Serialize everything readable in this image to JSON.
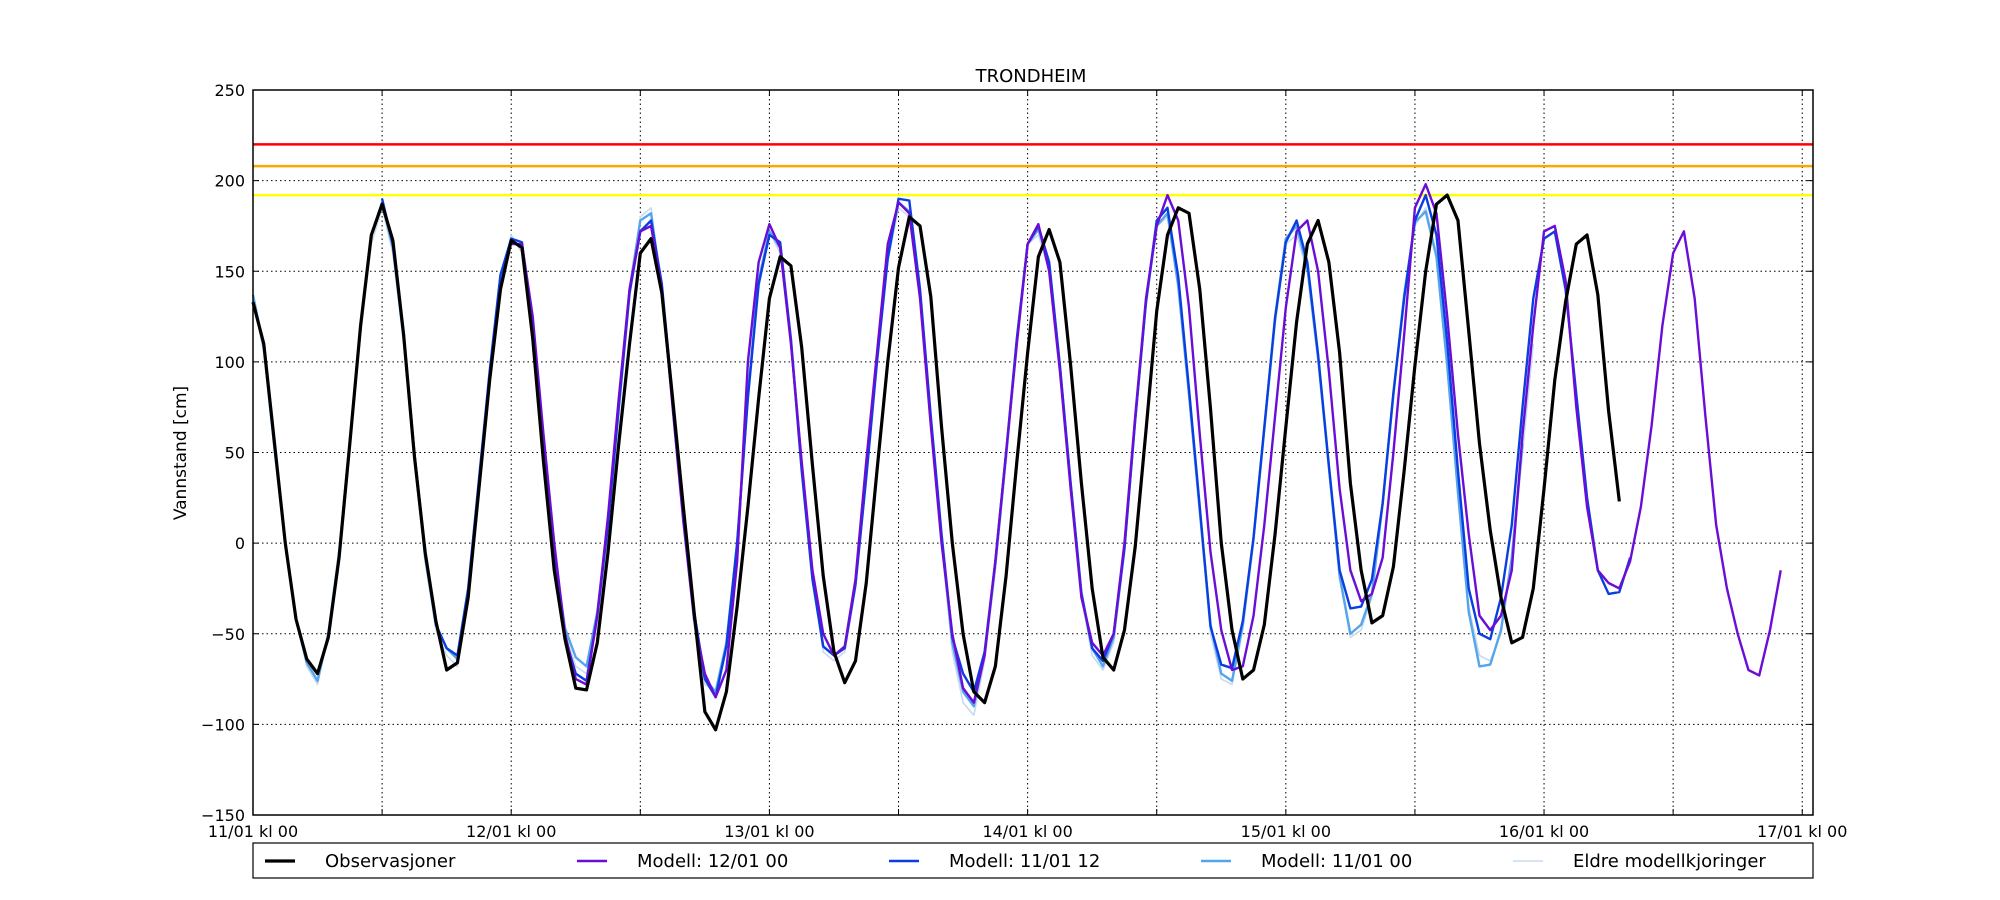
{
  "chart_data": {
    "type": "line",
    "title": "TRONDHEIM",
    "ylabel": "Vannstand [cm]",
    "xlabel": "",
    "ylim": [
      -150,
      250
    ],
    "yticks": [
      -150,
      -100,
      -50,
      0,
      50,
      100,
      150,
      200,
      250
    ],
    "ytick_labels": [
      "−150",
      "−100",
      "−50",
      "0",
      "50",
      "100",
      "150",
      "200",
      "250"
    ],
    "xlim": [
      0,
      145
    ],
    "xticks": [
      0,
      12,
      24,
      36,
      48,
      60,
      72,
      84,
      96,
      108,
      120,
      132,
      144
    ],
    "xtick_labels": [
      {
        "x": 0,
        "label": "11/01 kl 00"
      },
      {
        "x": 24,
        "label": "12/01 kl 00"
      },
      {
        "x": 48,
        "label": "13/01 kl 00"
      },
      {
        "x": 72,
        "label": "14/01 kl 00"
      },
      {
        "x": 96,
        "label": "15/01 kl 00"
      },
      {
        "x": 120,
        "label": "16/01 kl 00"
      },
      {
        "x": 144,
        "label": "17/01 kl 00"
      }
    ],
    "grid": true,
    "legend_position": "bottom",
    "thresholds": [
      {
        "value": 220,
        "color": "#ff0000"
      },
      {
        "value": 208,
        "color": "#ffa500"
      },
      {
        "value": 192,
        "color": "#ffff00"
      }
    ],
    "series": [
      {
        "name": "Eldre modellkjoringer",
        "color": "#c6dbef",
        "start_x": 0,
        "values": [
          135,
          105,
          50,
          0,
          -42,
          -68,
          -78,
          -50,
          -5,
          55,
          115,
          165,
          185,
          160,
          110,
          45,
          -10,
          -48,
          -62,
          -68,
          -30,
          30,
          90,
          145,
          170,
          160,
          110,
          50,
          -10,
          -50,
          -68,
          -72,
          -45,
          5,
          70,
          135,
          180,
          185,
          135,
          75,
          15,
          -45,
          -78,
          -82,
          -55,
          0,
          80,
          140,
          172,
          160,
          110,
          40,
          -20,
          -60,
          -65,
          -60,
          -25,
          35,
          100,
          155,
          185,
          180,
          135,
          65,
          0,
          -60,
          -88,
          -95,
          -65,
          -15,
          45,
          110,
          165,
          170,
          150,
          95,
          30,
          -30,
          -62,
          -70,
          -55,
          -5,
          65,
          130,
          175,
          180,
          140,
          80,
          15,
          -50,
          -75,
          -78,
          -48,
          0,
          60,
          120,
          165,
          170,
          150,
          100,
          40,
          -20,
          -52,
          -48,
          -30,
          20,
          80,
          135,
          175,
          185,
          160,
          100,
          25,
          -35,
          -62,
          -65,
          -50,
          -10,
          50,
          110
        ]
      },
      {
        "name": "Modell: 11/01 00",
        "color": "#56a5ec",
        "start_x": 0,
        "values": [
          137,
          108,
          52,
          0,
          -42,
          -66,
          -76,
          -50,
          -5,
          57,
          118,
          170,
          188,
          163,
          113,
          48,
          -8,
          -45,
          -58,
          -64,
          -28,
          32,
          92,
          147,
          167,
          163,
          113,
          53,
          -5,
          -47,
          -63,
          -68,
          -38,
          12,
          77,
          140,
          178,
          182,
          140,
          80,
          18,
          -38,
          -75,
          -82,
          -55,
          0,
          82,
          145,
          172,
          163,
          113,
          43,
          -18,
          -57,
          -62,
          -57,
          -22,
          38,
          103,
          160,
          188,
          183,
          138,
          68,
          3,
          -55,
          -82,
          -90,
          -62,
          -12,
          48,
          112,
          165,
          173,
          155,
          98,
          33,
          -27,
          -58,
          -68,
          -52,
          -3,
          68,
          133,
          175,
          182,
          142,
          82,
          18,
          -45,
          -72,
          -76,
          -45,
          3,
          63,
          125,
          168,
          175,
          152,
          102,
          42,
          -18,
          -50,
          -45,
          -28,
          22,
          82,
          137,
          177,
          183,
          158,
          98,
          28,
          -38,
          -68,
          -67,
          -48,
          -8,
          55
        ]
      },
      {
        "name": "Modell: 11/01 12",
        "color": "#0a3ee0",
        "start_x": 12,
        "values": [
          190,
          165,
          115,
          50,
          -5,
          -45,
          -58,
          -62,
          -25,
          35,
          95,
          148,
          168,
          166,
          118,
          57,
          -2,
          -52,
          -72,
          -76,
          -40,
          10,
          75,
          138,
          172,
          178,
          143,
          80,
          18,
          -38,
          -75,
          -85,
          -57,
          0,
          80,
          143,
          170,
          166,
          112,
          40,
          -20,
          -57,
          -62,
          -58,
          -23,
          36,
          100,
          157,
          190,
          189,
          140,
          70,
          5,
          -52,
          -72,
          -82,
          -60,
          -10,
          50,
          113,
          165,
          175,
          155,
          98,
          33,
          -28,
          -58,
          -65,
          -50,
          -3,
          68,
          133,
          178,
          185,
          147,
          85,
          20,
          -46,
          -67,
          -69,
          -43,
          3,
          64,
          124,
          166,
          178,
          155,
          104,
          43,
          -15,
          -36,
          -35,
          -20,
          22,
          83,
          135,
          178,
          192,
          170,
          111,
          40,
          -25,
          -50,
          -53,
          -30,
          10,
          75,
          135,
          168,
          172,
          140,
          82,
          25,
          -15,
          -28,
          -27,
          -8
        ]
      },
      {
        "name": "Modell: 12/01 00",
        "color": "#6a0dd6",
        "start_x": 24,
        "values": [
          165,
          165,
          125,
          60,
          0,
          -50,
          -75,
          -78,
          -40,
          15,
          80,
          140,
          172,
          175,
          140,
          75,
          12,
          -42,
          -72,
          -85,
          -70,
          -10,
          100,
          155,
          176,
          163,
          110,
          45,
          -15,
          -50,
          -62,
          -57,
          -20,
          45,
          105,
          165,
          188,
          182,
          135,
          65,
          0,
          -50,
          -80,
          -88,
          -62,
          -10,
          50,
          110,
          165,
          176,
          150,
          95,
          30,
          -30,
          -55,
          -62,
          -50,
          0,
          70,
          135,
          175,
          192,
          178,
          130,
          60,
          -5,
          -48,
          -70,
          -68,
          -40,
          10,
          70,
          130,
          172,
          178,
          150,
          95,
          30,
          -15,
          -32,
          -28,
          -8,
          50,
          115,
          185,
          198,
          182,
          125,
          60,
          5,
          -40,
          -48,
          -40,
          -15,
          60,
          120,
          172,
          175,
          145,
          75,
          20,
          -15,
          -22,
          -25,
          -10,
          20,
          65,
          120,
          160,
          172,
          135,
          70,
          10,
          -25,
          -50,
          -70,
          -73,
          -48,
          -15
        ]
      },
      {
        "name": "Observasjoner",
        "color": "#000000",
        "start_x": 0,
        "values": [
          133,
          110,
          55,
          0,
          -42,
          -64,
          -72,
          -52,
          -8,
          55,
          120,
          170,
          187,
          167,
          115,
          48,
          -5,
          -43,
          -70,
          -66,
          -30,
          30,
          90,
          140,
          167,
          163,
          113,
          45,
          -15,
          -53,
          -80,
          -81,
          -55,
          -5,
          55,
          110,
          160,
          168,
          138,
          80,
          20,
          -38,
          -93,
          -103,
          -82,
          -35,
          20,
          80,
          135,
          158,
          153,
          108,
          43,
          -18,
          -60,
          -77,
          -65,
          -22,
          40,
          100,
          152,
          180,
          175,
          136,
          64,
          0,
          -50,
          -82,
          -88,
          -68,
          -18,
          45,
          105,
          158,
          173,
          155,
          98,
          33,
          -25,
          -63,
          -70,
          -48,
          -2,
          62,
          128,
          170,
          185,
          182,
          140,
          74,
          0,
          -48,
          -75,
          -70,
          -45,
          5,
          64,
          122,
          165,
          178,
          155,
          105,
          33,
          -15,
          -44,
          -40,
          -13,
          40,
          98,
          150,
          187,
          192,
          178,
          117,
          55,
          7,
          -30,
          -55,
          -52,
          -25,
          30,
          90,
          133,
          165,
          170,
          137,
          73,
          23
        ]
      }
    ]
  }
}
